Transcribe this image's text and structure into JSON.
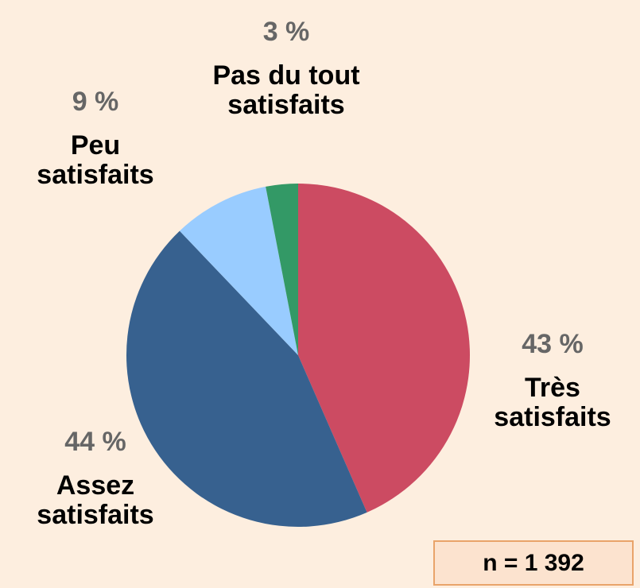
{
  "chart_data": {
    "type": "pie",
    "categories": [
      "Très satisfaits",
      "Assez satisfaits",
      "Peu satisfaits",
      "Pas du tout satisfaits"
    ],
    "values": [
      43,
      44,
      9,
      3
    ],
    "value_labels": [
      "43 %",
      "44 %",
      "9 %",
      "3 %"
    ],
    "colors": [
      "#cc4b62",
      "#37618f",
      "#99ccff",
      "#339966"
    ],
    "annotation": "n = 1 392"
  }
}
